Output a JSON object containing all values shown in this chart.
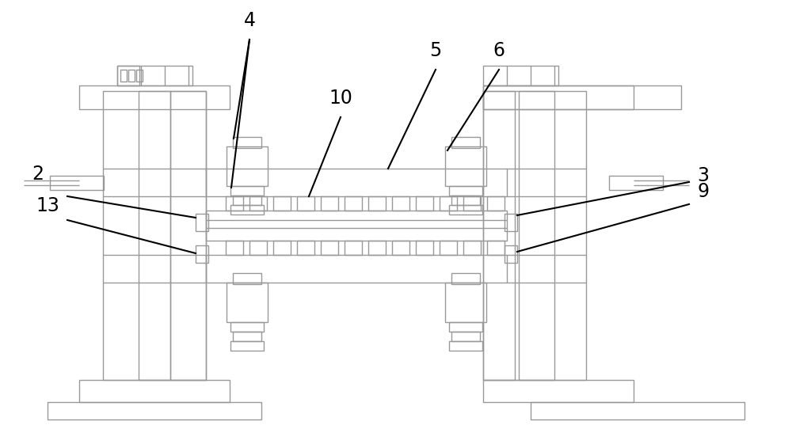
{
  "bg_color": "#ffffff",
  "lc": "#999999",
  "ac": "#000000",
  "fig_width": 10.0,
  "fig_height": 5.42,
  "dpi": 100,
  "lw": 1.0,
  "alw": 1.5
}
